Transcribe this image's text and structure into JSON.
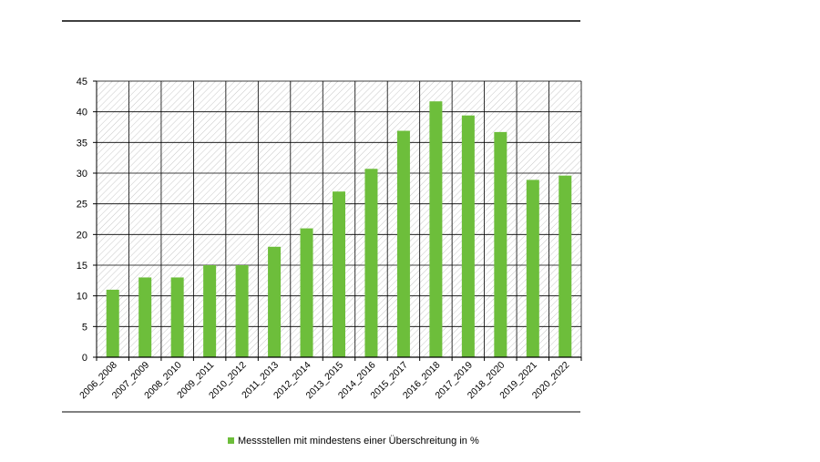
{
  "colors": {
    "bar": "#6dbe3b",
    "grid": "#000000",
    "hatch": "#c8c8c8",
    "rule": "#000000"
  },
  "chart_data": {
    "type": "bar",
    "categories": [
      "2006_2008",
      "2007_2009",
      "2008_2010",
      "2009_2011",
      "2010_2012",
      "2011_2013",
      "2012_2014",
      "2013_2015",
      "2014_2016",
      "2015_2017",
      "2016_2018",
      "2017_2019",
      "2018_2020",
      "2019_2021",
      "2020_2022"
    ],
    "series": [
      {
        "name": "Messstellen mit mindestens einer Überschreitung in %",
        "values": [
          11,
          13,
          13,
          15,
          15,
          18,
          21,
          27,
          30.7,
          36.9,
          41.7,
          39.4,
          36.7,
          28.9,
          29.6
        ]
      }
    ],
    "ylim": [
      0,
      45
    ],
    "yticks": [
      0,
      5,
      10,
      15,
      20,
      25,
      30,
      35,
      40,
      45
    ],
    "grid": true,
    "legend": "bottom-center",
    "title": "",
    "xlabel": "",
    "ylabel": ""
  }
}
